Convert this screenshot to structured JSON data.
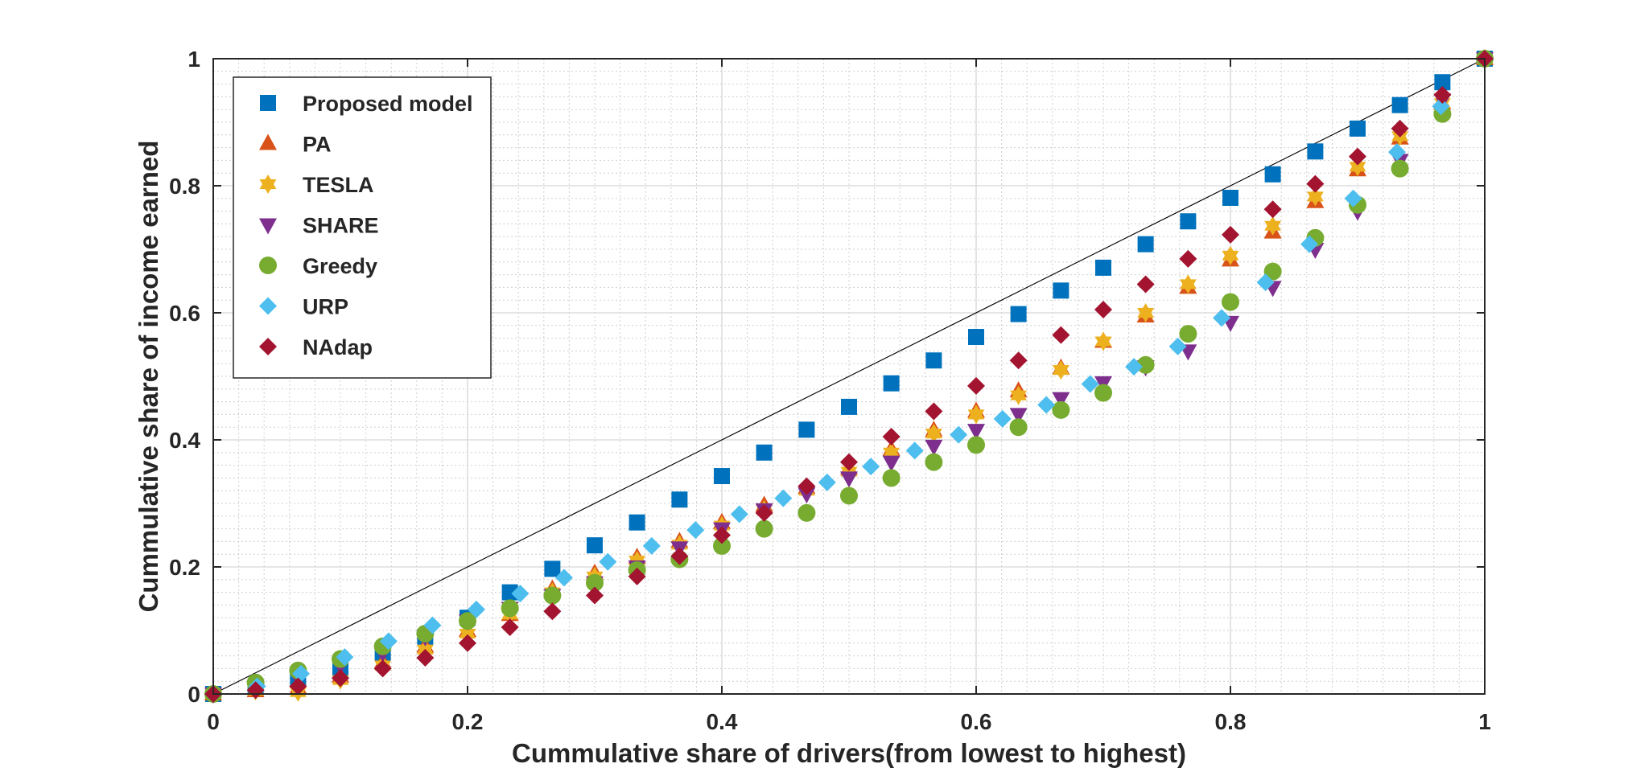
{
  "chart_data": {
    "type": "scatter",
    "title": "",
    "xlabel": "Cummulative share of drivers(from lowest to highest)",
    "ylabel": "Cummulative share of income earned",
    "xlim": [
      0,
      1
    ],
    "ylim": [
      0,
      1
    ],
    "xticks": [
      "0",
      "0.2",
      "0.4",
      "0.6",
      "0.8",
      "1"
    ],
    "yticks": [
      "0",
      "0.2",
      "0.4",
      "0.6",
      "0.8",
      "1"
    ],
    "grid": true,
    "minor_grid": true,
    "legend_position": "top-left",
    "reference_line": {
      "x": [
        0,
        1
      ],
      "y": [
        0,
        1
      ],
      "color": "#000000"
    },
    "series": [
      {
        "name": "Proposed model",
        "marker": "square",
        "color": "#0072BD",
        "x": [
          0,
          0.0333,
          0.0667,
          0.1,
          0.1333,
          0.1667,
          0.2,
          0.2333,
          0.2667,
          0.3,
          0.3333,
          0.3667,
          0.4,
          0.4333,
          0.4667,
          0.5,
          0.5333,
          0.5667,
          0.6,
          0.6333,
          0.6667,
          0.7,
          0.7333,
          0.7667,
          0.8,
          0.8333,
          0.8667,
          0.9,
          0.9333,
          0.9667,
          1
        ],
        "y": [
          0,
          0.01,
          0.025,
          0.04,
          0.065,
          0.09,
          0.12,
          0.16,
          0.197,
          0.234,
          0.27,
          0.306,
          0.343,
          0.38,
          0.416,
          0.452,
          0.489,
          0.525,
          0.562,
          0.598,
          0.635,
          0.671,
          0.708,
          0.744,
          0.781,
          0.818,
          0.854,
          0.89,
          0.927,
          0.963,
          1
        ]
      },
      {
        "name": "PA",
        "marker": "triangle-up",
        "color": "#D95319",
        "x": [
          0,
          0.0333,
          0.0667,
          0.1,
          0.1333,
          0.1667,
          0.2,
          0.2333,
          0.2667,
          0.3,
          0.3333,
          0.3667,
          0.4,
          0.4333,
          0.4667,
          0.5,
          0.5333,
          0.5667,
          0.6,
          0.6333,
          0.6667,
          0.7,
          0.7333,
          0.7667,
          0.8,
          0.8333,
          0.8667,
          0.9,
          0.9333,
          0.9667,
          1
        ],
        "y": [
          0,
          0.005,
          0.01,
          0.028,
          0.05,
          0.075,
          0.1,
          0.125,
          0.165,
          0.19,
          0.215,
          0.24,
          0.27,
          0.297,
          0.325,
          0.355,
          0.385,
          0.415,
          0.445,
          0.477,
          0.513,
          0.555,
          0.595,
          0.64,
          0.683,
          0.727,
          0.775,
          0.825,
          0.875,
          0.93,
          1
        ]
      },
      {
        "name": "TESLA",
        "marker": "hexagram",
        "color": "#EDB120",
        "x": [
          0,
          0.0333,
          0.0667,
          0.1,
          0.1333,
          0.1667,
          0.2,
          0.2333,
          0.2667,
          0.3,
          0.3333,
          0.3667,
          0.4,
          0.4333,
          0.4667,
          0.5,
          0.5333,
          0.5667,
          0.6,
          0.6333,
          0.6667,
          0.7,
          0.7333,
          0.7667,
          0.8,
          0.8333,
          0.8667,
          0.9,
          0.9333,
          0.9667,
          1
        ],
        "y": [
          0,
          0.005,
          0.003,
          0.022,
          0.045,
          0.07,
          0.095,
          0.125,
          0.16,
          0.185,
          0.21,
          0.235,
          0.265,
          0.29,
          0.32,
          0.35,
          0.38,
          0.41,
          0.44,
          0.47,
          0.51,
          0.555,
          0.6,
          0.645,
          0.69,
          0.737,
          0.783,
          0.83,
          0.878,
          0.93,
          1
        ]
      },
      {
        "name": "SHARE",
        "marker": "triangle-down",
        "color": "#7E2F8E",
        "x": [
          0,
          0.0333,
          0.0667,
          0.1,
          0.1333,
          0.1667,
          0.2,
          0.2333,
          0.2667,
          0.3,
          0.3333,
          0.3667,
          0.4,
          0.4333,
          0.4667,
          0.5,
          0.5333,
          0.5667,
          0.6,
          0.6333,
          0.6667,
          0.7,
          0.7333,
          0.7667,
          0.8,
          0.8333,
          0.8667,
          0.9,
          0.9333,
          0.9667,
          1
        ],
        "y": [
          0,
          0.01,
          0.025,
          0.045,
          0.065,
          0.09,
          0.115,
          0.135,
          0.155,
          0.175,
          0.2,
          0.23,
          0.26,
          0.29,
          0.315,
          0.34,
          0.365,
          0.39,
          0.415,
          0.44,
          0.465,
          0.49,
          0.515,
          0.54,
          0.585,
          0.64,
          0.7,
          0.76,
          0.84,
          0.935,
          1
        ]
      },
      {
        "name": "Greedy",
        "marker": "circle",
        "color": "#77AC30",
        "x": [
          0,
          0.0333,
          0.0667,
          0.1,
          0.1333,
          0.1667,
          0.2,
          0.2333,
          0.2667,
          0.3,
          0.3333,
          0.3667,
          0.4,
          0.4333,
          0.4667,
          0.5,
          0.5333,
          0.5667,
          0.6,
          0.6333,
          0.6667,
          0.7,
          0.7333,
          0.7667,
          0.8,
          0.8333,
          0.8667,
          0.9,
          0.9333,
          0.9667,
          1
        ],
        "y": [
          0,
          0.018,
          0.037,
          0.055,
          0.075,
          0.095,
          0.115,
          0.135,
          0.155,
          0.175,
          0.195,
          0.212,
          0.233,
          0.26,
          0.285,
          0.312,
          0.34,
          0.365,
          0.392,
          0.42,
          0.447,
          0.474,
          0.518,
          0.567,
          0.617,
          0.665,
          0.718,
          0.77,
          0.827,
          0.913,
          1
        ]
      },
      {
        "name": "URP",
        "marker": "diamond",
        "color": "#4DBEEE",
        "x": [
          0,
          0.0345,
          0.069,
          0.1034,
          0.1379,
          0.1724,
          0.2069,
          0.2414,
          0.2759,
          0.3103,
          0.3448,
          0.3793,
          0.4138,
          0.4483,
          0.4828,
          0.5172,
          0.5517,
          0.5862,
          0.6207,
          0.6552,
          0.6897,
          0.7241,
          0.7586,
          0.7931,
          0.8276,
          0.8621,
          0.8966,
          0.931,
          0.9655,
          1
        ],
        "y": [
          0,
          0.012,
          0.032,
          0.058,
          0.083,
          0.108,
          0.133,
          0.158,
          0.183,
          0.208,
          0.233,
          0.258,
          0.283,
          0.308,
          0.333,
          0.358,
          0.383,
          0.408,
          0.433,
          0.455,
          0.488,
          0.515,
          0.547,
          0.592,
          0.648,
          0.708,
          0.78,
          0.853,
          0.925,
          1
        ]
      },
      {
        "name": "NAdap",
        "marker": "diamond",
        "color": "#A2142F",
        "x": [
          0,
          0.0333,
          0.0667,
          0.1,
          0.1333,
          0.1667,
          0.2,
          0.2333,
          0.2667,
          0.3,
          0.3333,
          0.3667,
          0.4,
          0.4333,
          0.4667,
          0.5,
          0.5333,
          0.5667,
          0.6,
          0.6333,
          0.6667,
          0.7,
          0.7333,
          0.7667,
          0.8,
          0.8333,
          0.8667,
          0.9,
          0.9333,
          0.9667,
          1
        ],
        "y": [
          0,
          0.006,
          0.012,
          0.025,
          0.04,
          0.057,
          0.08,
          0.105,
          0.13,
          0.155,
          0.185,
          0.217,
          0.25,
          0.285,
          0.327,
          0.365,
          0.405,
          0.445,
          0.485,
          0.525,
          0.565,
          0.605,
          0.645,
          0.685,
          0.723,
          0.763,
          0.803,
          0.846,
          0.89,
          0.943,
          1
        ]
      }
    ]
  }
}
